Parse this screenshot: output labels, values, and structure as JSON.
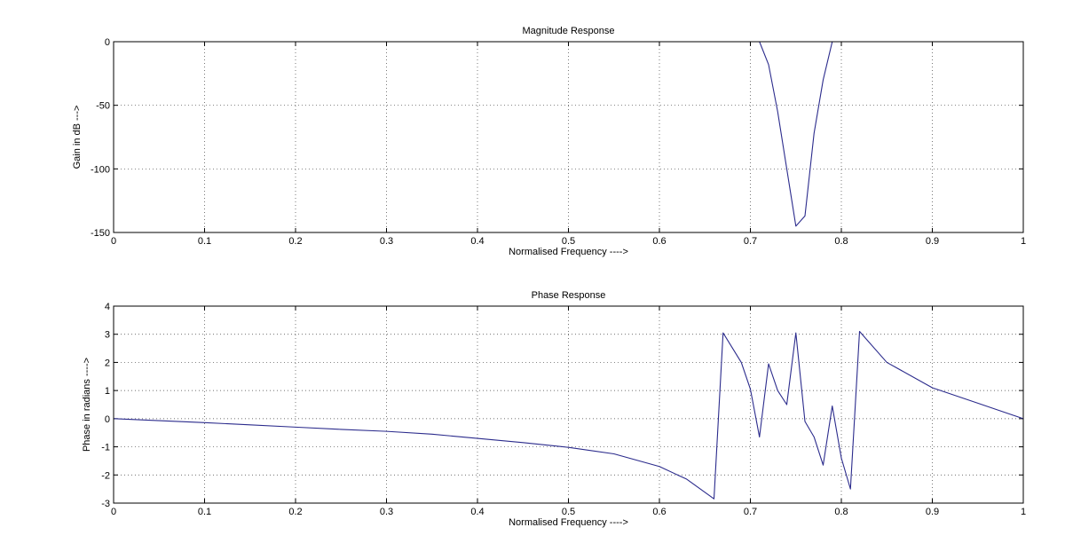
{
  "chart_data": [
    {
      "type": "line",
      "title": "Magnitude Response",
      "xlabel": "Normalised Frequency ---->",
      "ylabel": "Gain in dB --->",
      "xlim": [
        0,
        1
      ],
      "ylim": [
        -150,
        0
      ],
      "xticks": [
        0,
        0.1,
        0.2,
        0.3,
        0.4,
        0.5,
        0.6,
        0.7,
        0.8,
        0.9,
        1
      ],
      "xtick_labels": [
        "0",
        "0.1",
        "0.2",
        "0.3",
        "0.4",
        "0.5",
        "0.6",
        "0.7",
        "0.8",
        "0.9",
        "1"
      ],
      "yticks": [
        -150,
        -100,
        -50,
        0
      ],
      "ytick_labels": [
        "-150",
        "-100",
        "-50",
        "0"
      ],
      "grid": true,
      "line_color": "#2b2b8c",
      "series": [
        {
          "x": [
            0,
            0.1,
            0.2,
            0.3,
            0.4,
            0.5,
            0.6,
            0.7,
            0.71,
            0.72,
            0.73,
            0.74,
            0.75,
            0.76,
            0.77,
            0.78,
            0.79,
            0.8,
            0.9,
            1
          ],
          "y": [
            0,
            0,
            0,
            0,
            0,
            0,
            0,
            0,
            0,
            -18,
            -55,
            -100,
            -145,
            -137,
            -72,
            -30,
            0,
            0,
            0,
            0
          ]
        }
      ]
    },
    {
      "type": "line",
      "title": "Phase Response",
      "xlabel": "Normalised Frequency ---->",
      "ylabel": "Phase in radians ---->",
      "xlim": [
        0,
        1
      ],
      "ylim": [
        -3,
        4
      ],
      "xticks": [
        0,
        0.1,
        0.2,
        0.3,
        0.4,
        0.5,
        0.6,
        0.7,
        0.8,
        0.9,
        1
      ],
      "xtick_labels": [
        "0",
        "0.1",
        "0.2",
        "0.3",
        "0.4",
        "0.5",
        "0.6",
        "0.7",
        "0.8",
        "0.9",
        "1"
      ],
      "yticks": [
        -3,
        -2,
        -1,
        0,
        1,
        2,
        3,
        4
      ],
      "ytick_labels": [
        "-3",
        "-2",
        "-1",
        "0",
        "1",
        "2",
        "3",
        "4"
      ],
      "grid": true,
      "line_color": "#2b2b8c",
      "series": [
        {
          "x": [
            0,
            0.05,
            0.1,
            0.15,
            0.2,
            0.25,
            0.3,
            0.35,
            0.4,
            0.45,
            0.5,
            0.55,
            0.6,
            0.63,
            0.66,
            0.67,
            0.69,
            0.7,
            0.71,
            0.72,
            0.73,
            0.74,
            0.75,
            0.76,
            0.77,
            0.78,
            0.79,
            0.8,
            0.81,
            0.82,
            0.85,
            0.9,
            0.95,
            1
          ],
          "y": [
            0,
            -0.07,
            -0.14,
            -0.22,
            -0.3,
            -0.38,
            -0.45,
            -0.55,
            -0.7,
            -0.85,
            -1.02,
            -1.25,
            -1.7,
            -2.15,
            -2.85,
            3.05,
            2.0,
            1.05,
            -0.65,
            1.95,
            1.0,
            0.5,
            3.05,
            -0.1,
            -0.65,
            -1.65,
            0.45,
            -1.4,
            -2.5,
            3.1,
            2.0,
            1.1,
            0.55,
            0
          ]
        }
      ]
    }
  ]
}
